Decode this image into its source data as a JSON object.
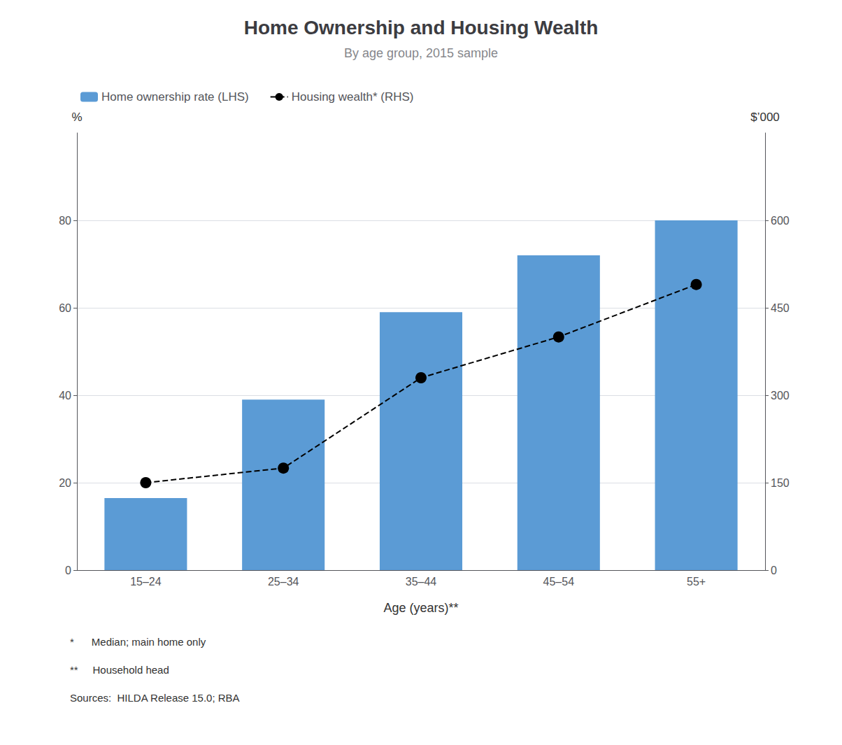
{
  "chart_data": {
    "type": "bar",
    "title": "Home Ownership and Housing Wealth",
    "subtitle": "By age group, 2015 sample",
    "categories": [
      "15–24",
      "25–34",
      "35–44",
      "45–54",
      "55+"
    ],
    "xlabel": "Age (years)**",
    "ylabel": "%",
    "y2label": "$’000",
    "series": [
      {
        "name": "Home ownership rate (LHS)",
        "type": "bar",
        "color": "#5B9BD5",
        "values": [
          16.5,
          39.0,
          59.0,
          72.0,
          80.0
        ]
      },
      {
        "name": "Housing wealth* (RHS)",
        "type": "line",
        "color": "#000000",
        "line_style": "dashed",
        "marker": "circle",
        "axis": "y2",
        "values": [
          150,
          175,
          330,
          400,
          490
        ]
      }
    ],
    "ylim": [
      0,
      100
    ],
    "yticks": [
      0,
      20,
      40,
      60,
      80
    ],
    "y2lim": [
      0,
      750
    ],
    "y2ticks": [
      0,
      150,
      300,
      450,
      600
    ],
    "grid": true,
    "legend": "upper left",
    "annotations": [
      "*      Median; main home only",
      "**     Household head",
      "Sources:  HILDA Release 15.0; RBA"
    ]
  }
}
